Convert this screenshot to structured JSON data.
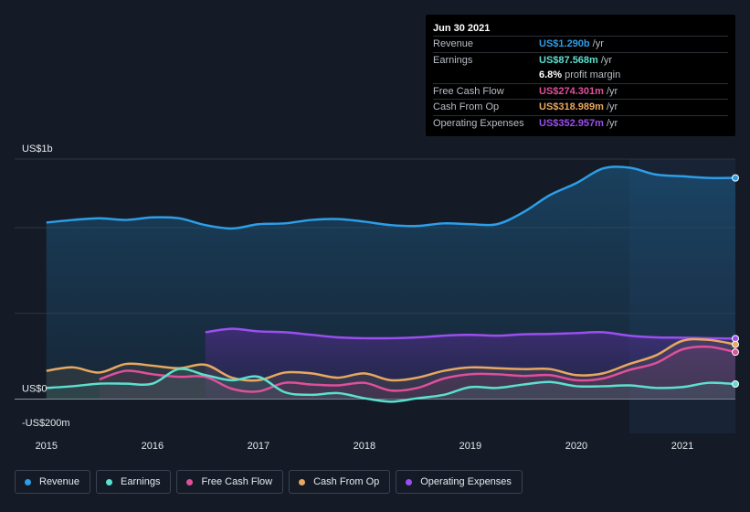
{
  "tooltip": {
    "date": "Jun 30 2021",
    "rows": [
      {
        "label": "Revenue",
        "value": "US$1.290b",
        "unit": "/yr",
        "color": "#2d9ee8"
      },
      {
        "label": "Earnings",
        "value": "US$87.568m",
        "unit": "/yr",
        "color": "#5ce0cf"
      },
      {
        "label": "",
        "value": "6.8%",
        "unit": "profit margin",
        "color": "#ffffff"
      },
      {
        "label": "Free Cash Flow",
        "value": "US$274.301m",
        "unit": "/yr",
        "color": "#e0509a"
      },
      {
        "label": "Cash From Op",
        "value": "US$318.989m",
        "unit": "/yr",
        "color": "#e8a860"
      },
      {
        "label": "Operating Expenses",
        "value": "US$352.957m",
        "unit": "/yr",
        "color": "#9b4ff0"
      }
    ]
  },
  "legend": [
    {
      "label": "Revenue",
      "color": "#2d9ee8"
    },
    {
      "label": "Earnings",
      "color": "#5ce0cf"
    },
    {
      "label": "Free Cash Flow",
      "color": "#e0509a"
    },
    {
      "label": "Cash From Op",
      "color": "#e8a860"
    },
    {
      "label": "Operating Expenses",
      "color": "#9b4ff0"
    }
  ],
  "chart_data": {
    "type": "area",
    "y_tick_labels": [
      "US$1b",
      "US$0",
      "-US$200m"
    ],
    "x_tick_labels": [
      "2015",
      "2016",
      "2017",
      "2018",
      "2019",
      "2020",
      "2021"
    ],
    "ylim": [
      -200,
      1400
    ],
    "xlim": [
      2014.7,
      2021.5
    ],
    "highlight_start": 2020.5,
    "series": [
      {
        "name": "Revenue",
        "color": "#2d9ee8",
        "x": [
          2015.0,
          2015.25,
          2015.5,
          2015.75,
          2016.0,
          2016.25,
          2016.5,
          2016.75,
          2017.0,
          2017.25,
          2017.5,
          2017.75,
          2018.0,
          2018.25,
          2018.5,
          2018.75,
          2019.0,
          2019.25,
          2019.5,
          2019.75,
          2020.0,
          2020.25,
          2020.5,
          2020.75,
          2021.0,
          2021.25,
          2021.5
        ],
        "values": [
          1030,
          1045,
          1055,
          1045,
          1060,
          1055,
          1015,
          995,
          1020,
          1025,
          1045,
          1050,
          1035,
          1015,
          1010,
          1025,
          1020,
          1020,
          1090,
          1190,
          1260,
          1345,
          1350,
          1310,
          1300,
          1290,
          1290
        ]
      },
      {
        "name": "Earnings",
        "color": "#5ce0cf",
        "x": [
          2015.0,
          2015.25,
          2015.5,
          2015.75,
          2016.0,
          2016.25,
          2016.5,
          2016.75,
          2017.0,
          2017.25,
          2017.5,
          2017.75,
          2018.0,
          2018.25,
          2018.5,
          2018.75,
          2019.0,
          2019.25,
          2019.5,
          2019.75,
          2020.0,
          2020.25,
          2020.5,
          2020.75,
          2021.0,
          2021.25,
          2021.5
        ],
        "values": [
          65,
          75,
          90,
          90,
          90,
          175,
          140,
          110,
          130,
          40,
          25,
          35,
          5,
          -15,
          5,
          25,
          70,
          65,
          85,
          100,
          75,
          75,
          80,
          65,
          70,
          95,
          88
        ]
      },
      {
        "name": "Free Cash Flow",
        "color": "#e0509a",
        "x": [
          2015.5,
          2015.75,
          2016.0,
          2016.25,
          2016.5,
          2016.75,
          2017.0,
          2017.25,
          2017.5,
          2017.75,
          2018.0,
          2018.25,
          2018.5,
          2018.75,
          2019.0,
          2019.25,
          2019.5,
          2019.75,
          2020.0,
          2020.25,
          2020.5,
          2020.75,
          2021.0,
          2021.25,
          2021.5
        ],
        "values": [
          115,
          165,
          145,
          130,
          130,
          60,
          45,
          95,
          85,
          80,
          95,
          50,
          65,
          120,
          145,
          145,
          135,
          140,
          110,
          120,
          170,
          210,
          290,
          305,
          274
        ]
      },
      {
        "name": "Cash From Op",
        "color": "#e8a860",
        "x": [
          2015.0,
          2015.25,
          2015.5,
          2015.75,
          2016.0,
          2016.25,
          2016.5,
          2016.75,
          2017.0,
          2017.25,
          2017.5,
          2017.75,
          2018.0,
          2018.25,
          2018.5,
          2018.75,
          2019.0,
          2019.25,
          2019.5,
          2019.75,
          2020.0,
          2020.25,
          2020.5,
          2020.75,
          2021.0,
          2021.25,
          2021.5
        ],
        "values": [
          165,
          185,
          155,
          205,
          195,
          180,
          200,
          125,
          110,
          155,
          150,
          125,
          150,
          110,
          125,
          165,
          185,
          180,
          175,
          175,
          140,
          150,
          205,
          255,
          340,
          345,
          319
        ]
      },
      {
        "name": "Operating Expenses",
        "color": "#9b4ff0",
        "x": [
          2016.5,
          2016.75,
          2017.0,
          2017.25,
          2017.5,
          2017.75,
          2018.0,
          2018.25,
          2018.5,
          2018.75,
          2019.0,
          2019.25,
          2019.5,
          2019.75,
          2020.0,
          2020.25,
          2020.5,
          2020.75,
          2021.0,
          2021.25,
          2021.5
        ],
        "values": [
          390,
          410,
          395,
          390,
          375,
          360,
          355,
          355,
          360,
          370,
          375,
          370,
          378,
          380,
          385,
          390,
          370,
          360,
          358,
          355,
          353
        ]
      }
    ]
  }
}
